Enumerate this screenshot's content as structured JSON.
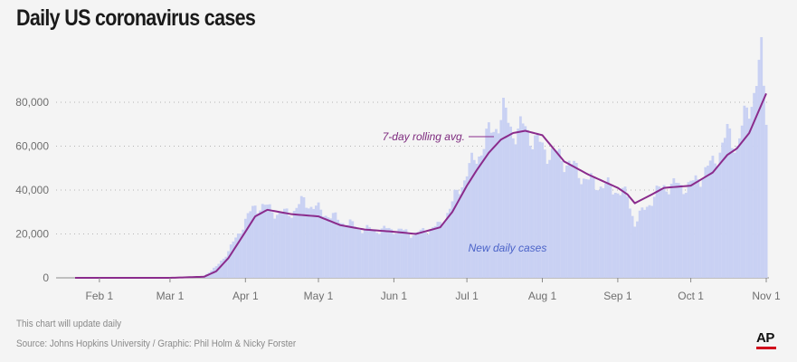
{
  "title": "Daily US coronavirus cases",
  "note": "This chart will update daily",
  "source": "Source: Johns Hopkins University / Graphic: Phil Holm & Nicky Forster",
  "logo_text": "AP",
  "colors": {
    "bars": "#c9d1f3",
    "line": "#8a2b8c",
    "grid": "#b5b5b5",
    "background": "#f4f4f4",
    "logo_bar": "#d0021b"
  },
  "chart_data": {
    "type": "bar",
    "title": "Daily US coronavirus cases",
    "x_start_date": "2020-01-22",
    "x_end_date": "2020-11-01",
    "xtick_labels": [
      "Feb 1",
      "Mar 1",
      "Apr 1",
      "May 1",
      "Jun 1",
      "Jul 1",
      "Aug 1",
      "Sep 1",
      "Oct 1",
      "Nov 1"
    ],
    "ytick_labels": [
      "0",
      "20,000",
      "40,000",
      "60,000",
      "80,000"
    ],
    "yticks": [
      0,
      20000,
      40000,
      60000,
      80000
    ],
    "ylim": [
      0,
      90000
    ],
    "grid": "horizontal dotted",
    "series": [
      {
        "name": "New daily cases",
        "kind": "bars",
        "x_dates": [
          "2020-01-22",
          "2020-02-01",
          "2020-02-15",
          "2020-03-01",
          "2020-03-10",
          "2020-03-15",
          "2020-03-20",
          "2020-03-25",
          "2020-04-01",
          "2020-04-05",
          "2020-04-10",
          "2020-04-15",
          "2020-04-20",
          "2020-04-25",
          "2020-05-01",
          "2020-05-10",
          "2020-05-20",
          "2020-06-01",
          "2020-06-10",
          "2020-06-20",
          "2020-06-25",
          "2020-07-01",
          "2020-07-05",
          "2020-07-10",
          "2020-07-16",
          "2020-07-20",
          "2020-07-25",
          "2020-08-01",
          "2020-08-10",
          "2020-08-20",
          "2020-09-01",
          "2020-09-05",
          "2020-09-08",
          "2020-09-15",
          "2020-09-20",
          "2020-10-01",
          "2020-10-10",
          "2020-10-16",
          "2020-10-20",
          "2020-10-25",
          "2020-10-30",
          "2020-11-01"
        ],
        "values": [
          0,
          0,
          0,
          10,
          250,
          1000,
          5000,
          12000,
          26000,
          33000,
          32000,
          29000,
          30000,
          35000,
          31000,
          26000,
          22000,
          22000,
          20000,
          24000,
          34000,
          48000,
          55000,
          65000,
          75000,
          67000,
          68000,
          59000,
          54000,
          44000,
          40000,
          37000,
          25000,
          36000,
          42000,
          42000,
          52000,
          65000,
          61000,
          78000,
          99000,
          74000
        ]
      },
      {
        "name": "7-day rolling avg.",
        "kind": "line",
        "x_dates": [
          "2020-01-22",
          "2020-03-01",
          "2020-03-15",
          "2020-03-20",
          "2020-03-25",
          "2020-04-01",
          "2020-04-05",
          "2020-04-10",
          "2020-04-15",
          "2020-04-20",
          "2020-05-01",
          "2020-05-10",
          "2020-05-20",
          "2020-06-01",
          "2020-06-10",
          "2020-06-20",
          "2020-06-25",
          "2020-07-01",
          "2020-07-05",
          "2020-07-10",
          "2020-07-15",
          "2020-07-20",
          "2020-07-25",
          "2020-08-01",
          "2020-08-10",
          "2020-08-20",
          "2020-09-01",
          "2020-09-05",
          "2020-09-08",
          "2020-09-15",
          "2020-09-20",
          "2020-10-01",
          "2020-10-10",
          "2020-10-16",
          "2020-10-20",
          "2020-10-25",
          "2020-11-01"
        ],
        "values": [
          0,
          0,
          500,
          3000,
          9000,
          21000,
          28000,
          31000,
          30000,
          29000,
          28000,
          24000,
          22000,
          21000,
          20000,
          23000,
          30000,
          42000,
          49000,
          57000,
          63000,
          66000,
          67000,
          65000,
          53000,
          47000,
          41000,
          38000,
          34000,
          38000,
          41000,
          42000,
          48000,
          56000,
          59000,
          66000,
          84000
        ]
      }
    ],
    "annotations": [
      "7-day rolling avg.",
      "New daily cases"
    ]
  }
}
